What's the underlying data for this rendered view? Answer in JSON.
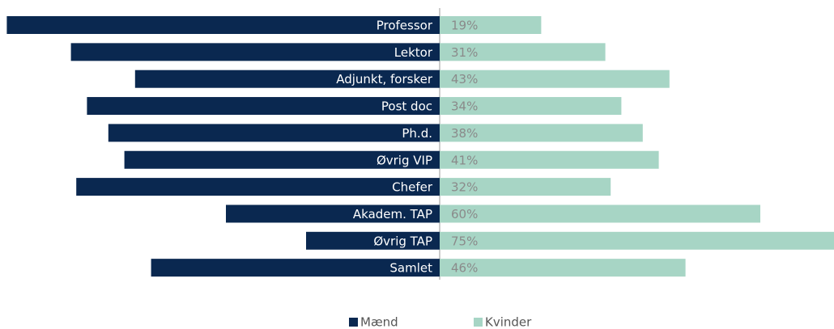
{
  "chart_data": {
    "type": "bar",
    "orientation": "horizontal",
    "stacked": "diverging",
    "categories": [
      "Professor",
      "Lektor",
      "Adjunkt, forsker",
      "Post doc",
      "Ph.d.",
      "Øvrig VIP",
      "Chefer",
      "Akadem. TAP",
      "Øvrig TAP",
      "Samlet"
    ],
    "series": [
      {
        "name": "Mænd",
        "color": "#0a2850",
        "values": [
          81,
          69,
          57,
          66,
          62,
          59,
          68,
          40,
          25,
          54
        ]
      },
      {
        "name": "Kvinder",
        "color": "#a7d5c5",
        "values": [
          19,
          31,
          43,
          34,
          38,
          41,
          32,
          60,
          75,
          46
        ],
        "value_labels": [
          "19%",
          "31%",
          "43%",
          "34%",
          "38%",
          "41%",
          "32%",
          "60%",
          "75%",
          "46%"
        ]
      }
    ],
    "legend": "bottom"
  }
}
